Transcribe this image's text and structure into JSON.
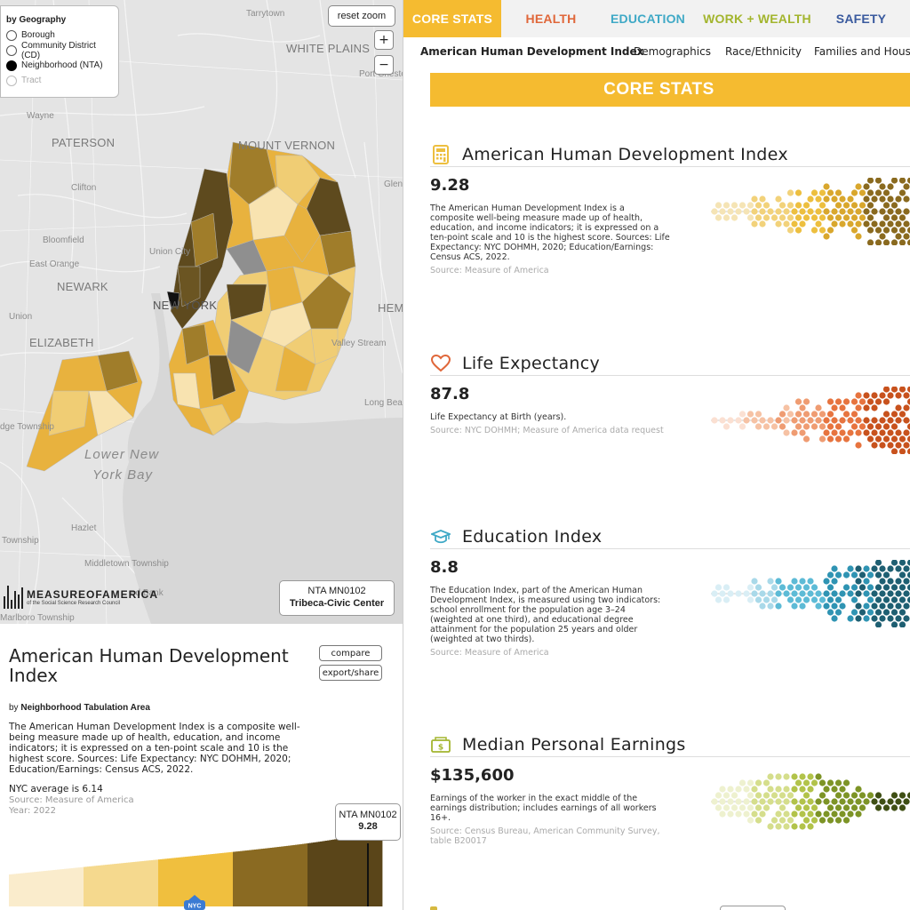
{
  "map": {
    "geography_panel": {
      "title": "by Geography",
      "options": [
        {
          "label": "Borough",
          "selected": false,
          "enabled": true
        },
        {
          "label": "Community District (CD)",
          "selected": false,
          "enabled": true
        },
        {
          "label": "Neighborhood (NTA)",
          "selected": true,
          "enabled": true
        },
        {
          "label": "Tract",
          "selected": false,
          "enabled": false
        }
      ]
    },
    "reset_zoom_label": "reset zoom",
    "zoom_in_label": "+",
    "zoom_out_label": "−",
    "place_labels": {
      "tarrytown": "Tarrytown",
      "white_plains": "WHITE PLAINS",
      "port_chester": "Port Chester",
      "wayne": "Wayne",
      "paterson": "PATERSON",
      "mount_vernon": "MOUNT VERNON",
      "clifton": "Clifton",
      "glen": "Glen",
      "bloomfield": "Bloomfield",
      "union_city": "Union City",
      "east_orange": "East Orange",
      "newark": "NEWARK",
      "new_york": "NEW YORK",
      "hem": "HEM",
      "union": "Union",
      "elizabeth": "ELIZABETH",
      "valley_stream": "Valley Stream",
      "long_beach": "Long Bea",
      "edge_township": "dge Township",
      "lower_ny_bay_1": "Lower New",
      "lower_ny_bay_2": "York Bay",
      "hazlet": "Hazlet",
      "township": "Township",
      "middletown": "Middletown Township",
      "red_bank": "ed Bank",
      "marlboro": "Marlboro Township"
    },
    "logo": {
      "word": "MEASUREOFAMERICA",
      "sub": "of the Social Science Research Council"
    },
    "tooltip": {
      "code": "NTA MN0102",
      "name": "Tribeca-Civic Center"
    },
    "colors": {
      "q1": "#f8e3b0",
      "q2": "#f0cd74",
      "q3": "#e8b23e",
      "q4": "#a07d2a",
      "q5": "#5e4a1e",
      "nodata": "#8f8f8f"
    }
  },
  "detail": {
    "title": "American Human Development Index",
    "compare_label": "compare",
    "export_label": "export/share",
    "by_prefix": "by ",
    "by_value": "Neighborhood Tabulation Area",
    "description": "The American Human Development Index is a composite well-being measure made up of health, education, and income indicators; it is expressed on a ten-point scale and 10 is the highest score. Sources: Life Expectancy: NYC DOHMH, 2020; Education/Earnings: Census ACS, 2022.",
    "nyc_average": "NYC average is 6.14",
    "source": "Source: Measure of America",
    "year": "Year: 2022",
    "nyc_marker_label": "NYC",
    "selected_tip": {
      "code": "NTA MN0102",
      "value": "9.28"
    },
    "dist_colors": [
      "#faeccc",
      "#f5d98e",
      "#f0bf3e",
      "#8a6a22",
      "#5a4519"
    ]
  },
  "tabs": [
    {
      "label": "CORE STATS",
      "color": "#ffffff",
      "active": true
    },
    {
      "label": "HEALTH",
      "color": "#e0673a",
      "active": false
    },
    {
      "label": "EDUCATION",
      "color": "#3fa9c6",
      "active": false
    },
    {
      "label": "WORK + WEALTH",
      "color": "#a3b52e",
      "active": false
    },
    {
      "label": "SAFETY",
      "color": "#3a5a9e",
      "active": false
    }
  ],
  "subtabs": [
    {
      "label": "American Human Development Index",
      "active": true
    },
    {
      "label": "Demographics",
      "active": false
    },
    {
      "label": "Race/Ethnicity",
      "active": false
    },
    {
      "label": "Families and Hous",
      "active": false
    }
  ],
  "banner": "CORE STATS",
  "stats": [
    {
      "name": "American Human Development Index",
      "icon": "calculator-icon",
      "value": "9.28",
      "description": "The American Human Development Index is a composite well-being measure made up of health, education, and income indicators; it is expressed on a ten-point scale and 10 is the highest score. Sources: Life Expectancy: NYC DOHMH, 2020; Education/Earnings: Census ACS, 2022.",
      "source": "Source: Measure of America",
      "colors": [
        "#f5e4b5",
        "#f2d27a",
        "#edbf3f",
        "#d9a72d",
        "#8a6a1f"
      ]
    },
    {
      "name": "Life Expectancy",
      "icon": "heart-icon",
      "value": "87.8",
      "description": "Life Expectancy at Birth (years).",
      "source": "Source: NYC DOHMH; Measure of America data request",
      "colors": [
        "#fbe0d2",
        "#f6c2a4",
        "#ef9c72",
        "#e7743f",
        "#c8521d"
      ]
    },
    {
      "name": "Education Index",
      "icon": "graduation-cap-icon",
      "value": "8.8",
      "description": "The Education Index, part of the American Human Development Index, is measured using two indicators: school enrollment for the population age 3–24 (weighted at one third), and educational degree attainment for the population 25 years and older (weighted at two thirds).",
      "source": "Source: Measure of America",
      "colors": [
        "#d9eef5",
        "#a9d9e9",
        "#5dbbd6",
        "#2f94b3",
        "#1e5f72"
      ]
    },
    {
      "name": "Median Personal Earnings",
      "icon": "money-icon",
      "value": "$135,600",
      "description": "Earnings of the worker in the exact middle of the earnings distribution; includes earnings of all workers 16+.",
      "source": "Source: Census Bureau, American Community Survey, table B20017",
      "colors": [
        "#eef1cf",
        "#d5de8c",
        "#b2c34a",
        "#7d9426",
        "#3f4f14"
      ]
    }
  ]
}
